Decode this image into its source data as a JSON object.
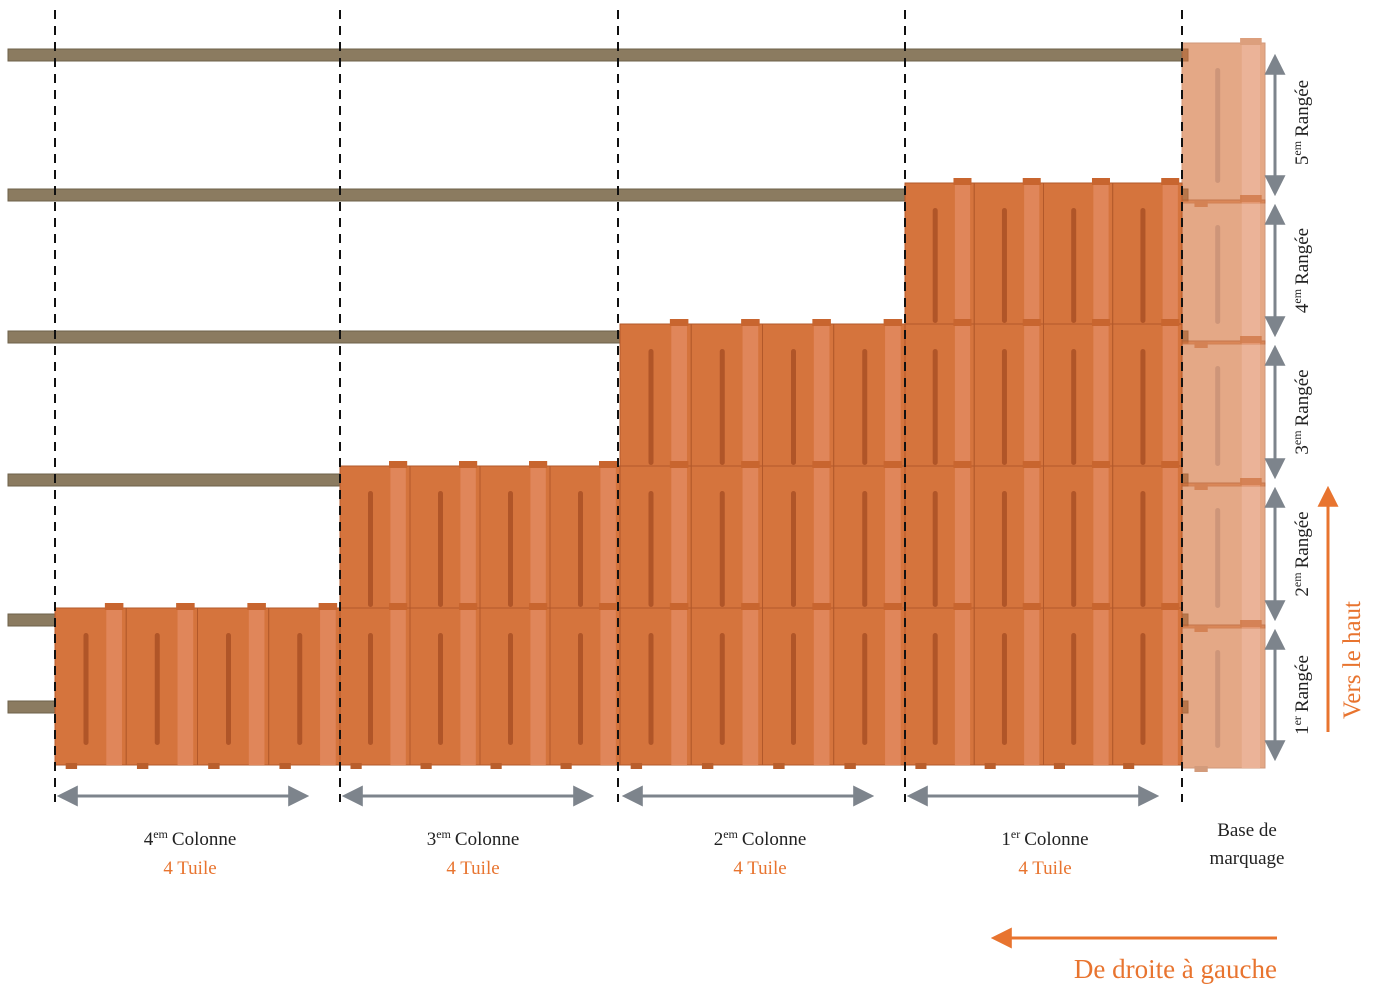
{
  "columns": [
    {
      "number": "4",
      "suffix": "em",
      "label": "Colonne",
      "count": "4 Tuile"
    },
    {
      "number": "3",
      "suffix": "em",
      "label": "Colonne",
      "count": "4 Tuile"
    },
    {
      "number": "2",
      "suffix": "em",
      "label": "Colonne",
      "count": "4 Tuile"
    },
    {
      "number": "1",
      "suffix": "er",
      "label": "Colonne",
      "count": "4 Tuile"
    }
  ],
  "base": {
    "lines": [
      "Base de",
      "marquage"
    ]
  },
  "rows": [
    {
      "number": "1",
      "suffix": "er",
      "label": "Rangée"
    },
    {
      "number": "2",
      "suffix": "em",
      "label": "Rangée"
    },
    {
      "number": "3",
      "suffix": "em",
      "label": "Rangée"
    },
    {
      "number": "4",
      "suffix": "em",
      "label": "Rangée"
    },
    {
      "number": "5",
      "suffix": "em",
      "label": "Rangée"
    }
  ],
  "direction_up": "Vers le haut",
  "direction_left": "De droite à gauche"
}
